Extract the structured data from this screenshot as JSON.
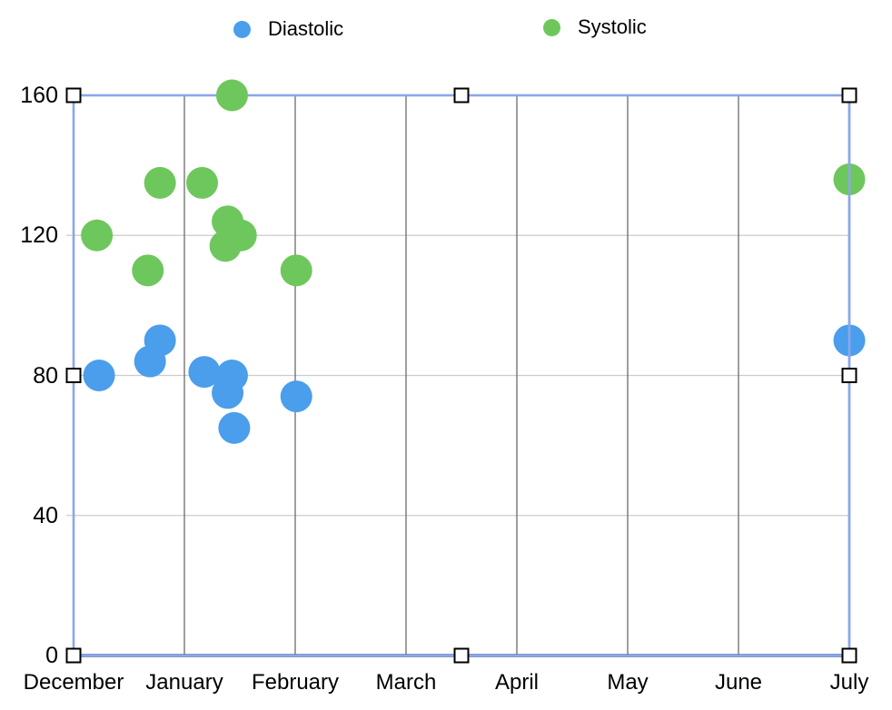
{
  "legend": [
    {
      "label": "Diastolic",
      "color": "#4A9EEB"
    },
    {
      "label": "Systolic",
      "color": "#6EC75C"
    }
  ],
  "chart_data": {
    "type": "scatter",
    "title": "",
    "xlabel": "",
    "ylabel": "",
    "x_axis": {
      "tick_labels": [
        "December",
        "January",
        "February",
        "March",
        "April",
        "May",
        "June",
        "July"
      ],
      "note": "x values below are in month units: 0 = December, 7 = July"
    },
    "y_axis": {
      "ticks": [
        0,
        40,
        80,
        120,
        160
      ],
      "range": [
        0,
        160
      ]
    },
    "grid": {
      "horizontal": true,
      "vertical": true
    },
    "legend_position": "top",
    "series": [
      {
        "name": "Diastolic",
        "color": "#4A9EEB",
        "points": [
          {
            "x": 0.23,
            "y": 80
          },
          {
            "x": 0.69,
            "y": 84
          },
          {
            "x": 0.78,
            "y": 90
          },
          {
            "x": 1.18,
            "y": 81
          },
          {
            "x": 1.39,
            "y": 75
          },
          {
            "x": 1.43,
            "y": 80
          },
          {
            "x": 1.45,
            "y": 65
          },
          {
            "x": 2.01,
            "y": 74
          },
          {
            "x": 7.0,
            "y": 90
          }
        ]
      },
      {
        "name": "Systolic",
        "color": "#6EC75C",
        "points": [
          {
            "x": 0.21,
            "y": 120
          },
          {
            "x": 0.67,
            "y": 110
          },
          {
            "x": 0.78,
            "y": 135
          },
          {
            "x": 1.16,
            "y": 135
          },
          {
            "x": 1.37,
            "y": 117
          },
          {
            "x": 1.51,
            "y": 120
          },
          {
            "x": 1.39,
            "y": 124
          },
          {
            "x": 1.43,
            "y": 160
          },
          {
            "x": 2.01,
            "y": 110
          },
          {
            "x": 7.0,
            "y": 136
          }
        ]
      }
    ]
  },
  "selection": {
    "selected": true,
    "border_color": "#8CA6E9",
    "handle_fill": "#FFFFFF",
    "handle_stroke": "#000000"
  },
  "colors": {
    "h_gridline": "#CCCCCC",
    "v_gridline": "#6B6B6B",
    "x_axis_line": "#3D5CA8",
    "background": "#FFFFFF",
    "label_text": "#000000"
  }
}
